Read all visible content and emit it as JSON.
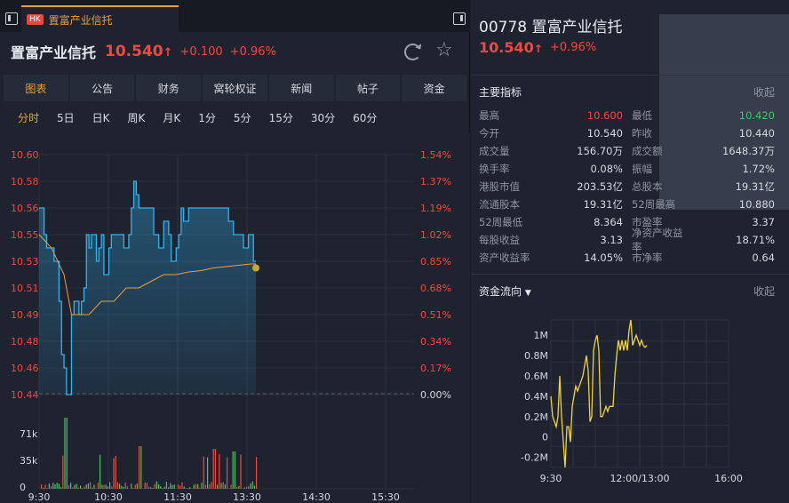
{
  "tab": {
    "badge": "HK",
    "title": "置富产业信托"
  },
  "header": {
    "name": "置富产业信托",
    "price": "10.540",
    "arrow": "↑",
    "change": "+0.100",
    "change_pct": "+0.96%"
  },
  "nav": [
    "图表",
    "公告",
    "财务",
    "窝轮权证",
    "新闻",
    "帖子",
    "资金"
  ],
  "periods": [
    "分时",
    "5日",
    "日K",
    "周K",
    "月K",
    "1分",
    "5分",
    "15分",
    "30分",
    "60分"
  ],
  "chart_data": [
    {
      "type": "line",
      "title": "",
      "y_ticks": [
        "10.60",
        "10.58",
        "10.56",
        "10.55",
        "10.53",
        "10.51",
        "10.49",
        "10.48",
        "10.46",
        "10.44"
      ],
      "pct_ticks": [
        "1.54%",
        "1.37%",
        "1.19%",
        "1.02%",
        "0.85%",
        "0.68%",
        "0.51%",
        "0.34%",
        "0.17%",
        "0.00%"
      ],
      "x_ticks": [
        "9:30",
        "10:30",
        "11:30",
        "13:30",
        "14:30",
        "15:30"
      ],
      "ylim": [
        10.44,
        10.62
      ],
      "prev_close": 10.44,
      "series": [
        {
          "color": "#2fb5f0",
          "x": [
            0,
            0.02,
            0.03,
            0.04,
            0.06,
            0.08,
            0.09,
            0.1,
            0.11,
            0.12,
            0.13,
            0.14,
            0.15,
            0.16,
            0.17,
            0.18,
            0.19,
            0.2,
            0.21,
            0.22,
            0.23,
            0.24,
            0.25,
            0.26,
            0.27,
            0.28,
            0.29,
            0.3,
            0.31,
            0.33,
            0.34,
            0.35,
            0.36,
            0.37,
            0.38,
            0.39,
            0.4,
            0.42,
            0.44,
            0.46,
            0.48,
            0.5,
            0.52,
            0.53,
            0.55,
            0.56,
            0.57,
            0.58,
            0.6,
            0.62,
            0.64,
            0.66,
            0.68,
            0.7,
            0.72,
            0.74,
            0.75,
            0.76,
            0.78,
            0.8,
            0.82,
            0.84,
            0.86,
            0.87
          ],
          "y": [
            10.58,
            10.56,
            10.55,
            10.55,
            10.54,
            10.51,
            10.47,
            10.46,
            10.44,
            10.44,
            10.5,
            10.51,
            10.51,
            10.5,
            10.51,
            10.52,
            10.56,
            10.55,
            10.56,
            10.56,
            10.54,
            10.55,
            10.56,
            10.53,
            10.53,
            10.55,
            10.56,
            10.56,
            10.56,
            10.56,
            10.55,
            10.55,
            10.56,
            10.58,
            10.6,
            10.59,
            10.58,
            10.58,
            10.58,
            10.56,
            10.55,
            10.57,
            10.56,
            10.54,
            10.55,
            10.56,
            10.58,
            10.57,
            10.58,
            10.58,
            10.58,
            10.58,
            10.58,
            10.58,
            10.58,
            10.58,
            10.58,
            10.57,
            10.56,
            10.56,
            10.55,
            10.56,
            10.54,
            10.54
          ]
        },
        {
          "color": "#e6a23c",
          "x": [
            0,
            0.05,
            0.1,
            0.13,
            0.15,
            0.2,
            0.25,
            0.3,
            0.35,
            0.4,
            0.45,
            0.5,
            0.55,
            0.6,
            0.65,
            0.7,
            0.75,
            0.8,
            0.85,
            0.87
          ],
          "y": [
            10.56,
            10.55,
            10.53,
            10.5,
            10.5,
            10.5,
            10.51,
            10.51,
            10.52,
            10.52,
            10.525,
            10.53,
            10.53,
            10.532,
            10.533,
            10.535,
            10.536,
            10.537,
            10.538,
            10.538
          ]
        }
      ],
      "volume_ticks": [
        "71k",
        "35k",
        "0"
      ]
    },
    {
      "type": "line",
      "title": "",
      "y_ticks": [
        "1M",
        "0.8M",
        "0.6M",
        "0.4M",
        "0.2M",
        "0",
        "-0.2M"
      ],
      "x_ticks": [
        "9:30",
        "12:00/13:00",
        "16:00"
      ],
      "ylim": [
        -0.3,
        1.15
      ],
      "series": [
        {
          "color": "#f0d43a",
          "x": [
            0,
            0.01,
            0.02,
            0.03,
            0.04,
            0.05,
            0.06,
            0.07,
            0.08,
            0.09,
            0.1,
            0.11,
            0.12,
            0.13,
            0.14,
            0.15,
            0.16,
            0.17,
            0.18,
            0.19,
            0.2,
            0.21,
            0.22,
            0.23,
            0.24,
            0.25,
            0.26,
            0.27,
            0.28,
            0.29,
            0.3,
            0.31,
            0.32,
            0.33,
            0.34,
            0.35,
            0.36,
            0.37,
            0.38,
            0.39,
            0.4,
            0.41,
            0.42,
            0.43,
            0.44,
            0.45,
            0.46,
            0.47,
            0.48,
            0.49,
            0.5,
            0.51,
            0.52,
            0.53,
            0.54
          ],
          "y": [
            0.4,
            0.2,
            0.15,
            0.1,
            0.2,
            0.6,
            0.2,
            -0.05,
            -0.3,
            0.1,
            0.1,
            -0.05,
            0.3,
            0.4,
            0.5,
            0.45,
            0.5,
            0.55,
            0.6,
            0.7,
            0.8,
            0.65,
            0.15,
            0.2,
            0.85,
            0.95,
            1.0,
            0.85,
            0.2,
            0.2,
            0.25,
            0.3,
            0.25,
            0.3,
            0.3,
            0.3,
            0.6,
            0.8,
            0.95,
            0.85,
            0.95,
            0.85,
            0.95,
            0.85,
            1.05,
            1.15,
            0.9,
            0.95,
            1.0,
            0.95,
            0.9,
            0.95,
            0.9,
            0.88,
            0.9
          ]
        }
      ]
    }
  ],
  "right": {
    "code": "00778",
    "name": "置富产业信托",
    "price": "10.540",
    "arrow": "↑",
    "change_pct": "+0.96%",
    "metrics_title": "主要指标",
    "collapse": "收起",
    "metrics": [
      {
        "l1": "最高",
        "v1": "10.600",
        "c1": "#f04a3e",
        "l2": "最低",
        "v2": "10.420",
        "c2": "#49c26a"
      },
      {
        "l1": "今开",
        "v1": "10.540",
        "l2": "昨收",
        "v2": "10.440"
      },
      {
        "l1": "成交量",
        "v1": "156.70万",
        "l2": "成交额",
        "v2": "1648.37万"
      },
      {
        "l1": "换手率",
        "v1": "0.08%",
        "l2": "振幅",
        "v2": "1.72%"
      },
      {
        "l1": "港股市值",
        "v1": "203.53亿",
        "l2": "总股本",
        "v2": "19.31亿"
      },
      {
        "l1": "流通股本",
        "v1": "19.31亿",
        "l2": "52周最高",
        "v2": "10.880"
      },
      {
        "l1": "52周最低",
        "v1": "8.364",
        "l2": "市盈率",
        "v2": "3.37"
      },
      {
        "l1": "每股收益",
        "v1": "3.13",
        "l2": "净资产收益率",
        "v2": "18.71%"
      },
      {
        "l1": "资产收益率",
        "v1": "14.05%",
        "l2": "市净率",
        "v2": "0.64"
      }
    ],
    "flow_title": "资金流向",
    "flow_collapse": "收起"
  }
}
